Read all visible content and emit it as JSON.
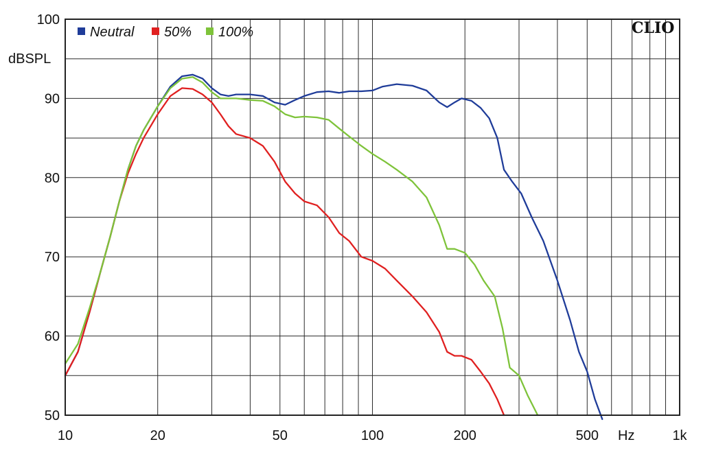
{
  "chart_data": {
    "type": "line",
    "xscale": "log",
    "xlim": [
      10,
      1000
    ],
    "ylim": [
      50,
      100
    ],
    "ylabel": "dBSPL",
    "x_unit_label": "Hz",
    "brand": "CLIO",
    "grid": true,
    "legend_position": "top-left",
    "x_ticks": [
      {
        "value": 10,
        "label": "10"
      },
      {
        "value": 20,
        "label": "20"
      },
      {
        "value": 50,
        "label": "50"
      },
      {
        "value": 100,
        "label": "100"
      },
      {
        "value": 200,
        "label": "200"
      },
      {
        "value": 500,
        "label": "500"
      },
      {
        "value": 1000,
        "label": "1k"
      }
    ],
    "y_ticks": [
      {
        "value": 100,
        "label": "100"
      },
      {
        "value": 90,
        "label": "90"
      },
      {
        "value": 80,
        "label": "80"
      },
      {
        "value": 70,
        "label": "70"
      },
      {
        "value": 60,
        "label": "60"
      },
      {
        "value": 50,
        "label": "50"
      }
    ],
    "series": [
      {
        "name": "Neutral",
        "color": "#1f3c99",
        "points": [
          [
            10,
            55
          ],
          [
            11,
            58
          ],
          [
            12,
            63
          ],
          [
            13,
            68
          ],
          [
            14,
            72.5
          ],
          [
            15,
            77
          ],
          [
            16,
            81
          ],
          [
            17,
            84
          ],
          [
            18,
            86
          ],
          [
            20,
            89
          ],
          [
            22,
            91.5
          ],
          [
            24,
            92.8
          ],
          [
            26,
            93
          ],
          [
            28,
            92.5
          ],
          [
            30,
            91.3
          ],
          [
            32,
            90.5
          ],
          [
            34,
            90.3
          ],
          [
            36,
            90.5
          ],
          [
            40,
            90.5
          ],
          [
            44,
            90.3
          ],
          [
            48,
            89.5
          ],
          [
            52,
            89.2
          ],
          [
            56,
            89.8
          ],
          [
            60,
            90.3
          ],
          [
            66,
            90.8
          ],
          [
            72,
            90.9
          ],
          [
            78,
            90.7
          ],
          [
            84,
            90.9
          ],
          [
            92,
            90.9
          ],
          [
            100,
            91
          ],
          [
            108,
            91.5
          ],
          [
            120,
            91.8
          ],
          [
            135,
            91.6
          ],
          [
            150,
            91
          ],
          [
            165,
            89.5
          ],
          [
            175,
            88.9
          ],
          [
            185,
            89.5
          ],
          [
            195,
            90
          ],
          [
            210,
            89.7
          ],
          [
            225,
            88.8
          ],
          [
            240,
            87.5
          ],
          [
            255,
            85
          ],
          [
            268,
            81
          ],
          [
            285,
            79.5
          ],
          [
            305,
            78
          ],
          [
            330,
            75
          ],
          [
            360,
            72
          ],
          [
            400,
            67
          ],
          [
            440,
            62
          ],
          [
            470,
            58
          ],
          [
            500,
            55.5
          ],
          [
            530,
            52
          ],
          [
            560,
            49.5
          ]
        ]
      },
      {
        "name": "50%",
        "color": "#e02020",
        "points": [
          [
            10,
            55
          ],
          [
            11,
            58
          ],
          [
            12,
            63
          ],
          [
            13,
            68
          ],
          [
            14,
            72.5
          ],
          [
            15,
            77
          ],
          [
            16,
            80.5
          ],
          [
            17,
            83
          ],
          [
            18,
            85
          ],
          [
            20,
            88
          ],
          [
            22,
            90.3
          ],
          [
            24,
            91.3
          ],
          [
            26,
            91.2
          ],
          [
            28,
            90.5
          ],
          [
            30,
            89.5
          ],
          [
            32,
            88
          ],
          [
            34,
            86.5
          ],
          [
            36,
            85.5
          ],
          [
            40,
            85
          ],
          [
            44,
            84
          ],
          [
            48,
            82
          ],
          [
            52,
            79.5
          ],
          [
            56,
            78
          ],
          [
            60,
            77
          ],
          [
            66,
            76.5
          ],
          [
            72,
            75
          ],
          [
            78,
            73
          ],
          [
            84,
            72
          ],
          [
            92,
            70
          ],
          [
            100,
            69.5
          ],
          [
            110,
            68.5
          ],
          [
            120,
            67
          ],
          [
            135,
            65
          ],
          [
            150,
            63
          ],
          [
            165,
            60.5
          ],
          [
            175,
            58
          ],
          [
            185,
            57.5
          ],
          [
            195,
            57.5
          ],
          [
            210,
            57
          ],
          [
            225,
            55.5
          ],
          [
            240,
            54
          ],
          [
            255,
            52
          ],
          [
            268,
            50
          ]
        ]
      },
      {
        "name": "100%",
        "color": "#7ec33a",
        "points": [
          [
            10,
            56.5
          ],
          [
            11,
            59
          ],
          [
            12,
            63.5
          ],
          [
            13,
            68
          ],
          [
            14,
            72.5
          ],
          [
            15,
            77
          ],
          [
            16,
            81
          ],
          [
            17,
            84
          ],
          [
            18,
            86
          ],
          [
            20,
            89
          ],
          [
            22,
            91.3
          ],
          [
            24,
            92.5
          ],
          [
            26,
            92.7
          ],
          [
            28,
            92
          ],
          [
            30,
            90.8
          ],
          [
            32,
            90
          ],
          [
            34,
            90
          ],
          [
            36,
            90
          ],
          [
            40,
            89.8
          ],
          [
            44,
            89.7
          ],
          [
            48,
            89
          ],
          [
            52,
            88
          ],
          [
            56,
            87.6
          ],
          [
            60,
            87.7
          ],
          [
            66,
            87.6
          ],
          [
            72,
            87.3
          ],
          [
            78,
            86.2
          ],
          [
            84,
            85.2
          ],
          [
            92,
            84
          ],
          [
            100,
            83
          ],
          [
            110,
            82
          ],
          [
            120,
            81
          ],
          [
            135,
            79.5
          ],
          [
            150,
            77.5
          ],
          [
            165,
            74
          ],
          [
            175,
            71
          ],
          [
            185,
            71
          ],
          [
            200,
            70.5
          ],
          [
            215,
            69
          ],
          [
            230,
            67
          ],
          [
            250,
            65
          ],
          [
            265,
            61
          ],
          [
            280,
            56
          ],
          [
            300,
            55
          ],
          [
            320,
            52.5
          ],
          [
            345,
            50
          ]
        ]
      }
    ]
  }
}
